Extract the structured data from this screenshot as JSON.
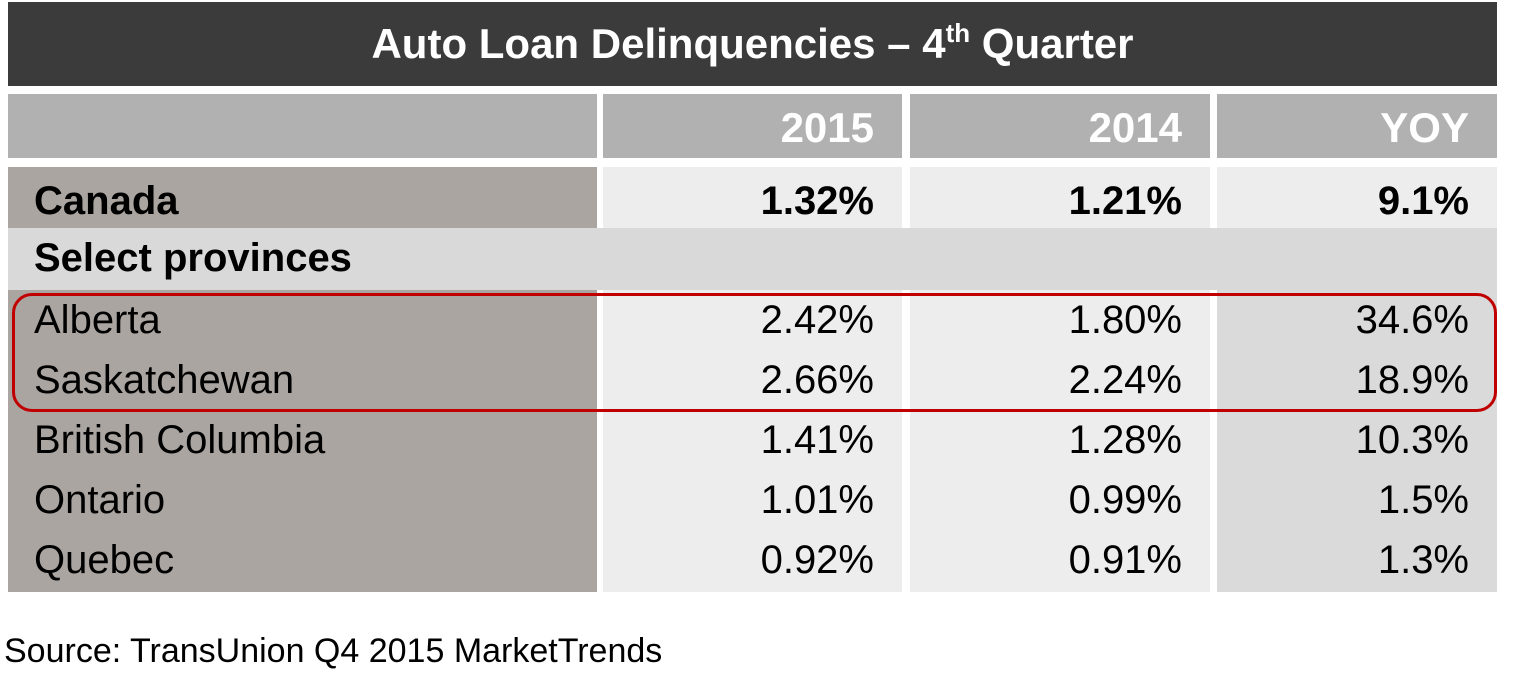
{
  "title": {
    "main": "Auto Loan Delinquencies – 4",
    "superscript": "th",
    "end": " Quarter"
  },
  "table": {
    "columns": [
      "2015",
      "2014",
      "YOY"
    ],
    "total": [
      "Canada",
      "1.32%",
      "1.21%",
      "9.1%"
    ],
    "section": "Select provinces",
    "rows": [
      [
        "Alberta",
        "2.42%",
        "1.80%",
        "34.6%"
      ],
      [
        "Saskatchewan",
        "2.66%",
        "2.24%",
        "18.9%"
      ],
      [
        "British Columbia",
        "1.41%",
        "1.28%",
        "10.3%"
      ],
      [
        "Ontario",
        "1.01%",
        "0.99%",
        "1.5%"
      ],
      [
        "Quebec",
        "0.92%",
        "0.91%",
        "1.3%"
      ]
    ]
  },
  "source": "Source: TransUnion Q4 2015 MarketTrends"
}
